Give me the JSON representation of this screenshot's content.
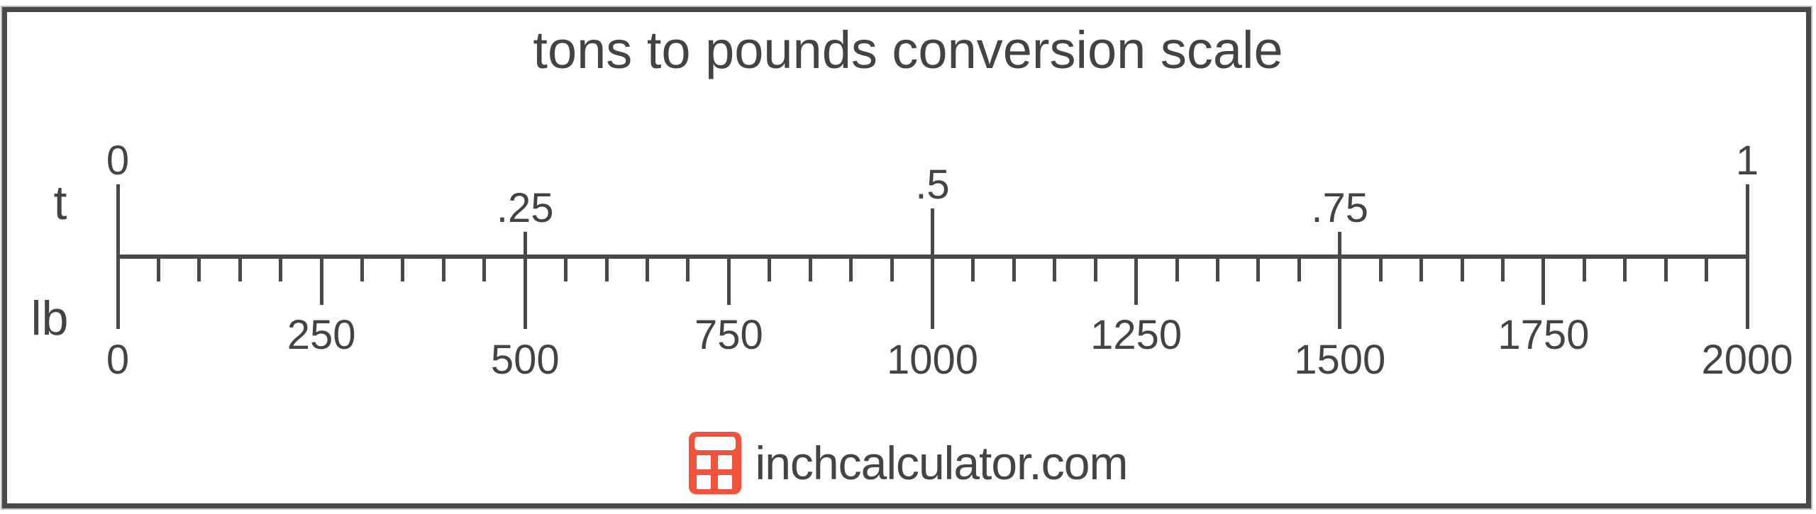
{
  "title": "tons to pounds conversion scale",
  "chart_data": {
    "type": "ruler",
    "title": "tons to pounds conversion scale",
    "top_axis": {
      "unit_label": "t",
      "min": 0,
      "max": 1,
      "ticks": [
        {
          "value": 0,
          "label": "0",
          "size": "major"
        },
        {
          "value": 0.25,
          "label": ".25",
          "size": "minor"
        },
        {
          "value": 0.5,
          "label": ".5",
          "size": "medium"
        },
        {
          "value": 0.75,
          "label": ".75",
          "size": "minor"
        },
        {
          "value": 1,
          "label": "1",
          "size": "major"
        }
      ]
    },
    "bottom_axis": {
      "unit_label": "lb",
      "min": 0,
      "max": 2000,
      "minor_tick_step": 50,
      "ticks": [
        {
          "value": 0,
          "label": "0",
          "size": "major"
        },
        {
          "value": 250,
          "label": "250",
          "size": "medium"
        },
        {
          "value": 500,
          "label": "500",
          "size": "major"
        },
        {
          "value": 750,
          "label": "750",
          "size": "medium"
        },
        {
          "value": 1000,
          "label": "1000",
          "size": "major"
        },
        {
          "value": 1250,
          "label": "1250",
          "size": "medium"
        },
        {
          "value": 1500,
          "label": "1500",
          "size": "major"
        },
        {
          "value": 1750,
          "label": "1750",
          "size": "medium"
        },
        {
          "value": 2000,
          "label": "2000",
          "size": "major"
        }
      ]
    },
    "relationship": "1 t = 2000 lb",
    "legend": "none",
    "grid": "off"
  },
  "branding": {
    "site": "inchcalculator.com",
    "icon": "calculator-icon"
  },
  "colors": {
    "ink": "#434343",
    "line": "#484848",
    "frame_border": "#484848",
    "logo_red": "#f1533d",
    "background": "#ffffff"
  }
}
